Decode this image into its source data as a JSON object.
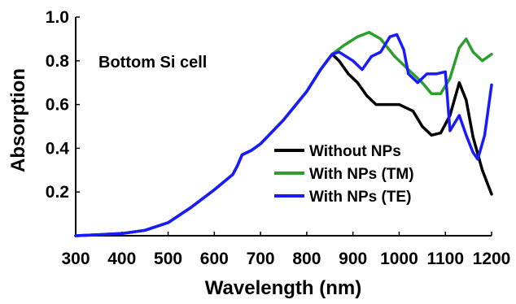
{
  "chart_data": {
    "type": "line",
    "title": "",
    "xlabel": "Wavelength (nm)",
    "ylabel": "Absorption",
    "xlim": [
      300,
      1200
    ],
    "ylim": [
      0,
      1.0
    ],
    "xticks": [
      300,
      400,
      500,
      600,
      700,
      800,
      900,
      1000,
      1100,
      1200
    ],
    "xtick_labels": [
      "300",
      "400",
      "500",
      "600",
      "700",
      "800",
      "900",
      "1000",
      "1100",
      "1200"
    ],
    "yticks": [
      0.2,
      0.4,
      0.6,
      0.8,
      1.0
    ],
    "ytick_labels": [
      "0.2",
      "0.4",
      "0.6",
      "0.8",
      "1.0"
    ],
    "grid": false,
    "legend_position": "inside-right",
    "annotation": "Bottom Si cell",
    "series": [
      {
        "name": "Without NPs",
        "color": "#000000",
        "points": [
          [
            300,
            0.0
          ],
          [
            350,
            0.005
          ],
          [
            400,
            0.01
          ],
          [
            450,
            0.025
          ],
          [
            500,
            0.06
          ],
          [
            550,
            0.13
          ],
          [
            600,
            0.21
          ],
          [
            640,
            0.28
          ],
          [
            650,
            0.32
          ],
          [
            660,
            0.37
          ],
          [
            680,
            0.39
          ],
          [
            700,
            0.42
          ],
          [
            750,
            0.53
          ],
          [
            800,
            0.66
          ],
          [
            830,
            0.76
          ],
          [
            855,
            0.83
          ],
          [
            870,
            0.8
          ],
          [
            890,
            0.74
          ],
          [
            910,
            0.7
          ],
          [
            930,
            0.64
          ],
          [
            950,
            0.6
          ],
          [
            980,
            0.6
          ],
          [
            1000,
            0.6
          ],
          [
            1030,
            0.57
          ],
          [
            1050,
            0.5
          ],
          [
            1070,
            0.46
          ],
          [
            1090,
            0.47
          ],
          [
            1110,
            0.55
          ],
          [
            1130,
            0.7
          ],
          [
            1145,
            0.62
          ],
          [
            1160,
            0.45
          ],
          [
            1180,
            0.3
          ],
          [
            1200,
            0.19
          ]
        ]
      },
      {
        "name": "With NPs (TM)",
        "color": "#2e9e2e",
        "points": [
          [
            300,
            0.0
          ],
          [
            350,
            0.005
          ],
          [
            400,
            0.01
          ],
          [
            450,
            0.025
          ],
          [
            500,
            0.06
          ],
          [
            550,
            0.13
          ],
          [
            600,
            0.21
          ],
          [
            640,
            0.28
          ],
          [
            650,
            0.32
          ],
          [
            660,
            0.37
          ],
          [
            680,
            0.39
          ],
          [
            700,
            0.42
          ],
          [
            750,
            0.53
          ],
          [
            800,
            0.66
          ],
          [
            830,
            0.76
          ],
          [
            855,
            0.83
          ],
          [
            880,
            0.87
          ],
          [
            910,
            0.91
          ],
          [
            935,
            0.93
          ],
          [
            960,
            0.9
          ],
          [
            990,
            0.82
          ],
          [
            1020,
            0.76
          ],
          [
            1050,
            0.7
          ],
          [
            1070,
            0.65
          ],
          [
            1090,
            0.65
          ],
          [
            1110,
            0.72
          ],
          [
            1130,
            0.86
          ],
          [
            1145,
            0.9
          ],
          [
            1160,
            0.84
          ],
          [
            1180,
            0.8
          ],
          [
            1200,
            0.83
          ]
        ]
      },
      {
        "name": "With NPs (TE)",
        "color": "#1a1aff",
        "points": [
          [
            300,
            0.0
          ],
          [
            350,
            0.005
          ],
          [
            400,
            0.01
          ],
          [
            450,
            0.025
          ],
          [
            500,
            0.06
          ],
          [
            550,
            0.13
          ],
          [
            600,
            0.21
          ],
          [
            640,
            0.28
          ],
          [
            650,
            0.32
          ],
          [
            660,
            0.37
          ],
          [
            680,
            0.39
          ],
          [
            700,
            0.42
          ],
          [
            750,
            0.53
          ],
          [
            800,
            0.66
          ],
          [
            830,
            0.76
          ],
          [
            855,
            0.83
          ],
          [
            870,
            0.84
          ],
          [
            900,
            0.8
          ],
          [
            920,
            0.76
          ],
          [
            940,
            0.82
          ],
          [
            960,
            0.84
          ],
          [
            980,
            0.91
          ],
          [
            995,
            0.92
          ],
          [
            1010,
            0.85
          ],
          [
            1020,
            0.74
          ],
          [
            1040,
            0.7
          ],
          [
            1060,
            0.74
          ],
          [
            1080,
            0.74
          ],
          [
            1100,
            0.75
          ],
          [
            1110,
            0.48
          ],
          [
            1130,
            0.55
          ],
          [
            1145,
            0.46
          ],
          [
            1160,
            0.38
          ],
          [
            1170,
            0.35
          ],
          [
            1185,
            0.46
          ],
          [
            1200,
            0.69
          ]
        ]
      }
    ]
  }
}
